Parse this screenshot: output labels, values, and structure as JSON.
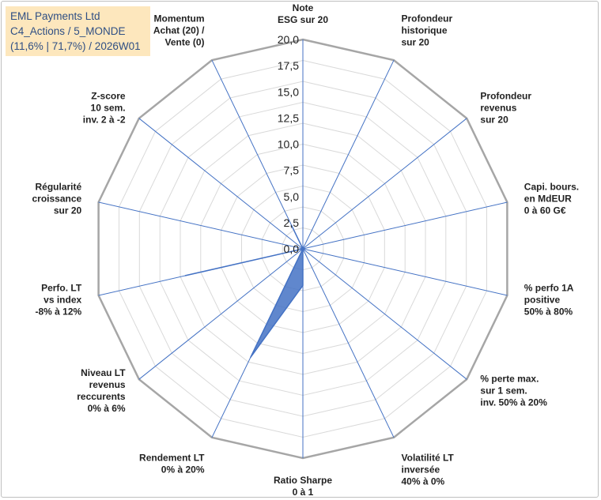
{
  "header": {
    "line1": "EML Payments Ltd",
    "line2": "C4_Actions / 5_MONDE",
    "line3": "(11,6% | 71,7%) / 2026W01"
  },
  "chart_data": {
    "type": "radar",
    "title": "",
    "rlim": [
      0,
      20
    ],
    "ticks": [
      "0,0",
      "2,5",
      "5,0",
      "7,5",
      "10,0",
      "12,5",
      "15,0",
      "17,5",
      "20,0"
    ],
    "grid_rings": 10,
    "axes": [
      [
        "Note",
        "ESG sur 20"
      ],
      [
        "Profondeur",
        "historique",
        "sur 20"
      ],
      [
        "Profondeur",
        "revenus",
        "sur 20"
      ],
      [
        "Capi. bours.",
        "en MdEUR",
        "0 à 60 G€"
      ],
      [
        "% perfo 1A",
        "positive",
        "50% à 80%"
      ],
      [
        "% perte max.",
        "sur 1 sem.",
        "inv. 50% à 20%"
      ],
      [
        "Volatilité LT",
        "inversée",
        "40% à 0%"
      ],
      [
        "Ratio Sharpe",
        "0 à 1"
      ],
      [
        "Rendement LT",
        "0% à 20%"
      ],
      [
        "Niveau LT",
        "revenus",
        "reccurents",
        "0% à 6%"
      ],
      [
        "Perfo. LT",
        "vs index",
        "-8% à 12%"
      ],
      [
        "Régularité",
        "croissance",
        "sur 20"
      ],
      [
        "Z-score",
        "10 sem.",
        "inv. 2 à -2"
      ],
      [
        "Momentum",
        "Achat (20) /",
        "Vente (0)"
      ]
    ],
    "series": [
      {
        "name": "EML Payments Ltd",
        "values": [
          0,
          0,
          0,
          0,
          0,
          0,
          0,
          3.5,
          11.5,
          0,
          11.5,
          0,
          0,
          2.5
        ],
        "color": "#4472c4"
      }
    ],
    "colors": {
      "grid": "#d9d9d9",
      "outer": "#a6a6a6",
      "spokes": "#4472c4",
      "fill": "#4472c4",
      "title_bg": "#fde7bd",
      "title_text": "#2f4f84"
    }
  }
}
